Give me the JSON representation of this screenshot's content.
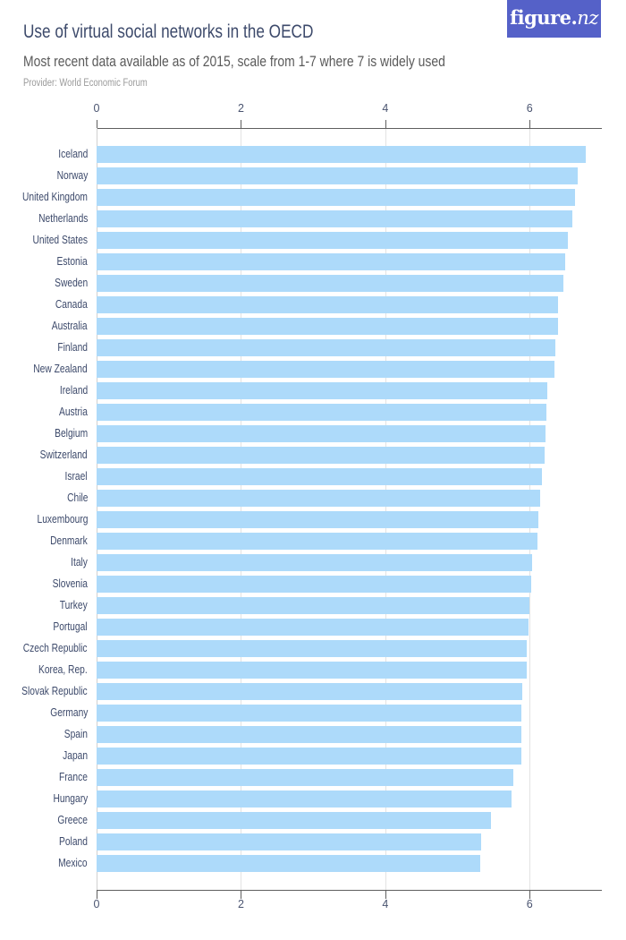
{
  "header": {
    "title": "Use of virtual social networks in the OECD",
    "subtitle": "Most recent data available as of 2015, scale from 1-7 where 7 is widely used",
    "provider": "Provider: World Economic Forum",
    "logo": {
      "main": "figure.",
      "suffix": "nz",
      "bg_color": "#5561c8"
    }
  },
  "colors": {
    "bar": "#addafa",
    "grid": "#e3e3e3",
    "axis": "#5f5f5f",
    "title": "#3d4a6b"
  },
  "chart_data": {
    "type": "bar",
    "orientation": "horizontal",
    "title": "Use of virtual social networks in the OECD",
    "subtitle": "Most recent data available as of 2015, scale from 1-7 where 7 is widely used",
    "xlabel": "",
    "ylabel": "",
    "xlim": [
      0,
      7
    ],
    "x_ticks": [
      0,
      2,
      4,
      6
    ],
    "grid": true,
    "legend": "none",
    "axis_position": [
      "top",
      "bottom"
    ],
    "categories": [
      "Iceland",
      "Norway",
      "United Kingdom",
      "Netherlands",
      "United States",
      "Estonia",
      "Sweden",
      "Canada",
      "Australia",
      "Finland",
      "New Zealand",
      "Ireland",
      "Austria",
      "Belgium",
      "Switzerland",
      "Israel",
      "Chile",
      "Luxembourg",
      "Denmark",
      "Italy",
      "Slovenia",
      "Turkey",
      "Portugal",
      "Czech Republic",
      "Korea, Rep.",
      "Slovak Republic",
      "Germany",
      "Spain",
      "Japan",
      "France",
      "Hungary",
      "Greece",
      "Poland",
      "Mexico"
    ],
    "values": [
      6.78,
      6.67,
      6.63,
      6.59,
      6.53,
      6.49,
      6.47,
      6.39,
      6.39,
      6.35,
      6.34,
      6.24,
      6.23,
      6.22,
      6.21,
      6.17,
      6.14,
      6.12,
      6.11,
      6.03,
      6.02,
      6.0,
      5.99,
      5.96,
      5.96,
      5.9,
      5.89,
      5.88,
      5.88,
      5.77,
      5.75,
      5.46,
      5.33,
      5.31
    ]
  }
}
